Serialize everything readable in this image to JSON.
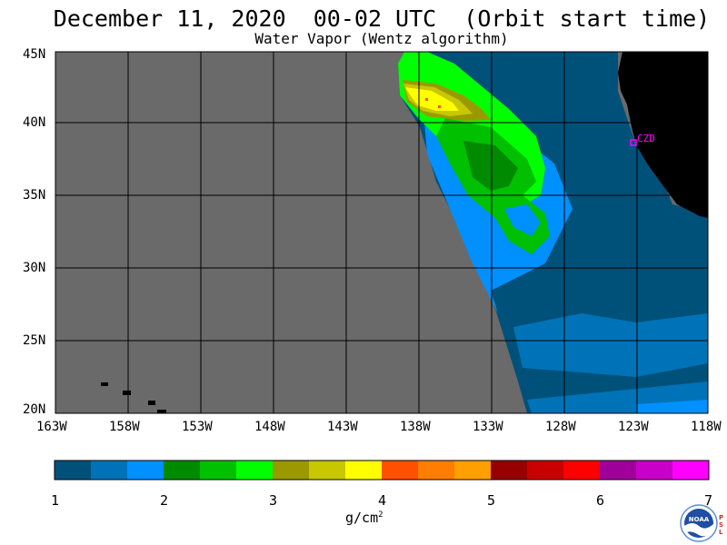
{
  "title": "December 11, 2020  00-02 UTC  (Orbit start time)",
  "subtitle": "Water Vapor (Wentz algorithm)",
  "lat_labels": [
    "45N",
    "40N",
    "35N",
    "30N",
    "25N",
    "20N"
  ],
  "lon_labels": [
    "163W",
    "158W",
    "153W",
    "148W",
    "143W",
    "138W",
    "133W",
    "128W",
    "123W",
    "118W"
  ],
  "station_label": "CZD",
  "colorbar": {
    "ticks": [
      "1",
      "2",
      "3",
      "4",
      "5",
      "6",
      "7"
    ],
    "unit": "g/cm",
    "unit_exponent": "2",
    "colors": [
      "#00517a",
      "#0073b8",
      "#0090ff",
      "#008a00",
      "#00c000",
      "#00ff00",
      "#9a9a00",
      "#c8c800",
      "#ffff00",
      "#ff5000",
      "#ff7d00",
      "#ffa000",
      "#960000",
      "#c80000",
      "#ff0000",
      "#a0009a",
      "#c800c8",
      "#ff00ff"
    ]
  },
  "colors": {
    "no_data": "#6a6a6a",
    "land": "#000000",
    "grid": "#000000",
    "station": "#ff00ff"
  },
  "logo": {
    "text": "NOAA",
    "side_text": "PSL"
  }
}
